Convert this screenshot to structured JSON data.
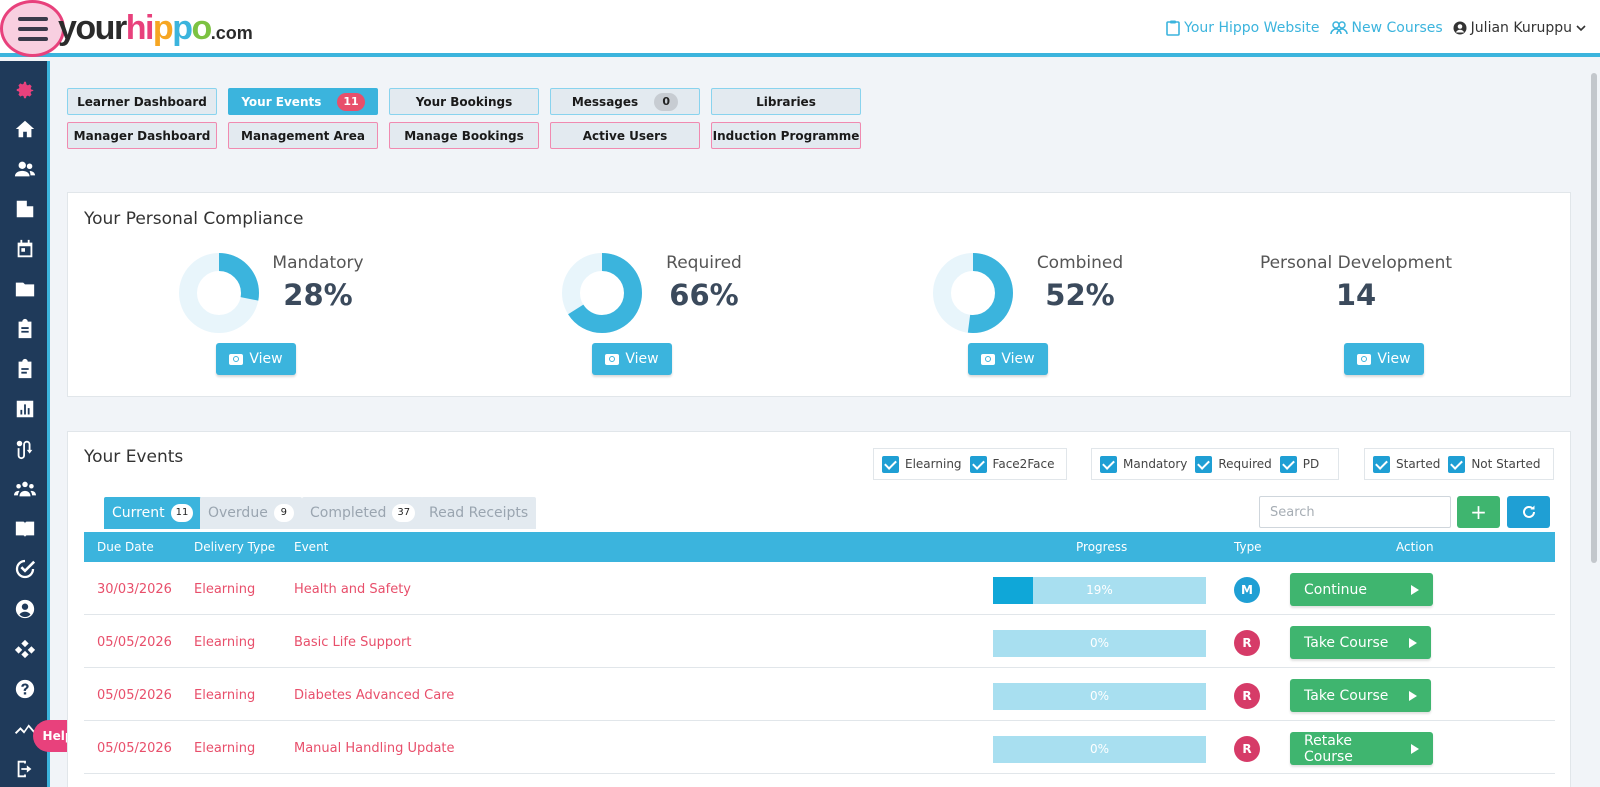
{
  "header": {
    "logo": {
      "your": "your",
      "h": "hi",
      "p1": "p",
      "p2": "p",
      "o": "o",
      "com": ".com"
    },
    "links": {
      "website": "Your Hippo Website",
      "new_courses": "New Courses"
    },
    "user": "Julian Kuruppu"
  },
  "sidebar": {
    "icons": [
      "gear-icon",
      "home-icon",
      "users-icon",
      "building-icon",
      "calendar-icon",
      "folder-icon",
      "clipboard-icon",
      "clipboard-list-icon",
      "chart-icon",
      "route-icon",
      "group-icon",
      "book-icon",
      "check-circle-icon",
      "user-circle-icon",
      "sitemap-icon",
      "question-icon",
      "activity-icon",
      "sign-out-icon"
    ],
    "help": "Help"
  },
  "quick_buttons": {
    "row1": [
      {
        "label": "Learner Dashboard",
        "badge": ""
      },
      {
        "label": "Your Events",
        "badge": "11"
      },
      {
        "label": "Your Bookings",
        "badge": ""
      },
      {
        "label": "Messages",
        "badge": "0"
      },
      {
        "label": "Libraries",
        "badge": ""
      }
    ],
    "row2": [
      {
        "label": "Manager Dashboard"
      },
      {
        "label": "Management Area"
      },
      {
        "label": "Manage Bookings"
      },
      {
        "label": "Active Users"
      },
      {
        "label": "Induction Programme"
      }
    ]
  },
  "compliance": {
    "title": "Your Personal Compliance",
    "items": [
      {
        "label": "Mandatory",
        "value": "28%",
        "fraction": 0.28
      },
      {
        "label": "Required",
        "value": "66%",
        "fraction": 0.66
      },
      {
        "label": "Combined",
        "value": "52%",
        "fraction": 0.52
      },
      {
        "label": "Personal Development",
        "value": "14"
      }
    ],
    "view_label": "View"
  },
  "events": {
    "title": "Your Events",
    "filters": {
      "group1": [
        "Elearning",
        "Face2Face"
      ],
      "group2": [
        "Mandatory",
        "Required",
        "PD"
      ],
      "group3": [
        "Started",
        "Not Started"
      ]
    },
    "tabs": [
      {
        "label": "Current",
        "badge": "11"
      },
      {
        "label": "Overdue",
        "badge": "9"
      },
      {
        "label": "Completed",
        "badge": "37"
      },
      {
        "label": "Read Receipts",
        "badge": ""
      }
    ],
    "search_placeholder": "Search",
    "columns": {
      "due": "Due Date",
      "delivery": "Delivery Type",
      "event": "Event",
      "progress": "Progress",
      "type": "Type",
      "action": "Action"
    },
    "rows": [
      {
        "due": "30/03/2026",
        "delivery": "Elearning",
        "event": "Health and Safety",
        "progress": "19%",
        "progress_fraction": 0.19,
        "type": "M",
        "action": "Continue"
      },
      {
        "due": "05/05/2026",
        "delivery": "Elearning",
        "event": "Basic Life Support",
        "progress": "0%",
        "progress_fraction": 0,
        "type": "R",
        "action": "Take Course"
      },
      {
        "due": "05/05/2026",
        "delivery": "Elearning",
        "event": "Diabetes Advanced Care",
        "progress": "0%",
        "progress_fraction": 0,
        "type": "R",
        "action": "Take Course"
      },
      {
        "due": "05/05/2026",
        "delivery": "Elearning",
        "event": "Manual Handling Update",
        "progress": "0%",
        "progress_fraction": 0,
        "type": "R",
        "action": "Retake Course"
      }
    ]
  },
  "colors": {
    "accent": "#3bb4dd",
    "pink": "#e8417c",
    "green": "#3fb56f",
    "due_red": "#e84f6b",
    "sidebar": "#1f3a5a"
  }
}
